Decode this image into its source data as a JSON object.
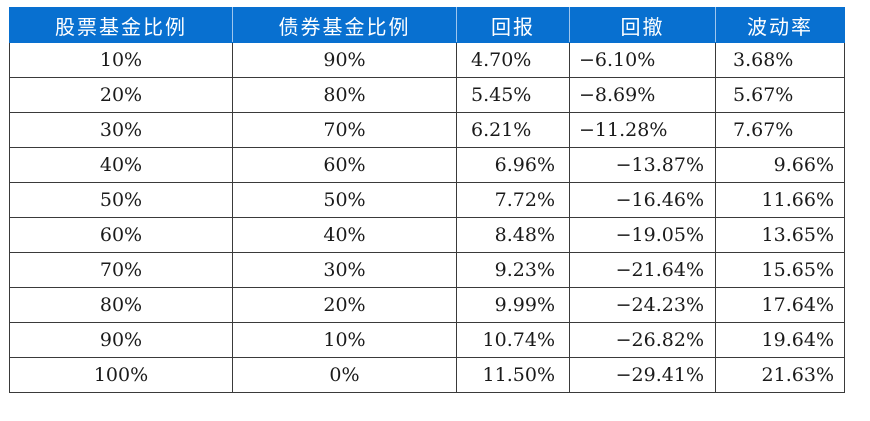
{
  "table": {
    "headers": [
      "股票基金比例",
      "债券基金比例",
      "回报",
      "回撤",
      "波动率"
    ],
    "rows": [
      [
        "10%",
        "90%",
        "4.70%",
        "−6.10%",
        "3.68%"
      ],
      [
        "20%",
        "80%",
        "5.45%",
        "−8.69%",
        "5.67%"
      ],
      [
        "30%",
        "70%",
        "6.21%",
        "−11.28%",
        "7.67%"
      ],
      [
        "40%",
        "60%",
        "6.96%",
        "−13.87%",
        "9.66%"
      ],
      [
        "50%",
        "50%",
        "7.72%",
        "−16.46%",
        "11.66%"
      ],
      [
        "60%",
        "40%",
        "8.48%",
        "−19.05%",
        "13.65%"
      ],
      [
        "70%",
        "30%",
        "9.23%",
        "−21.64%",
        "15.65%"
      ],
      [
        "80%",
        "20%",
        "9.99%",
        "−24.23%",
        "17.64%"
      ],
      [
        "90%",
        "10%",
        "10.74%",
        "−26.82%",
        "19.64%"
      ],
      [
        "100%",
        "0%",
        "11.50%",
        "−29.41%",
        "21.63%"
      ]
    ]
  },
  "colors": {
    "header_bg": "#0870d0",
    "header_text": "#ffffff",
    "grid": "#3a3a3a"
  }
}
